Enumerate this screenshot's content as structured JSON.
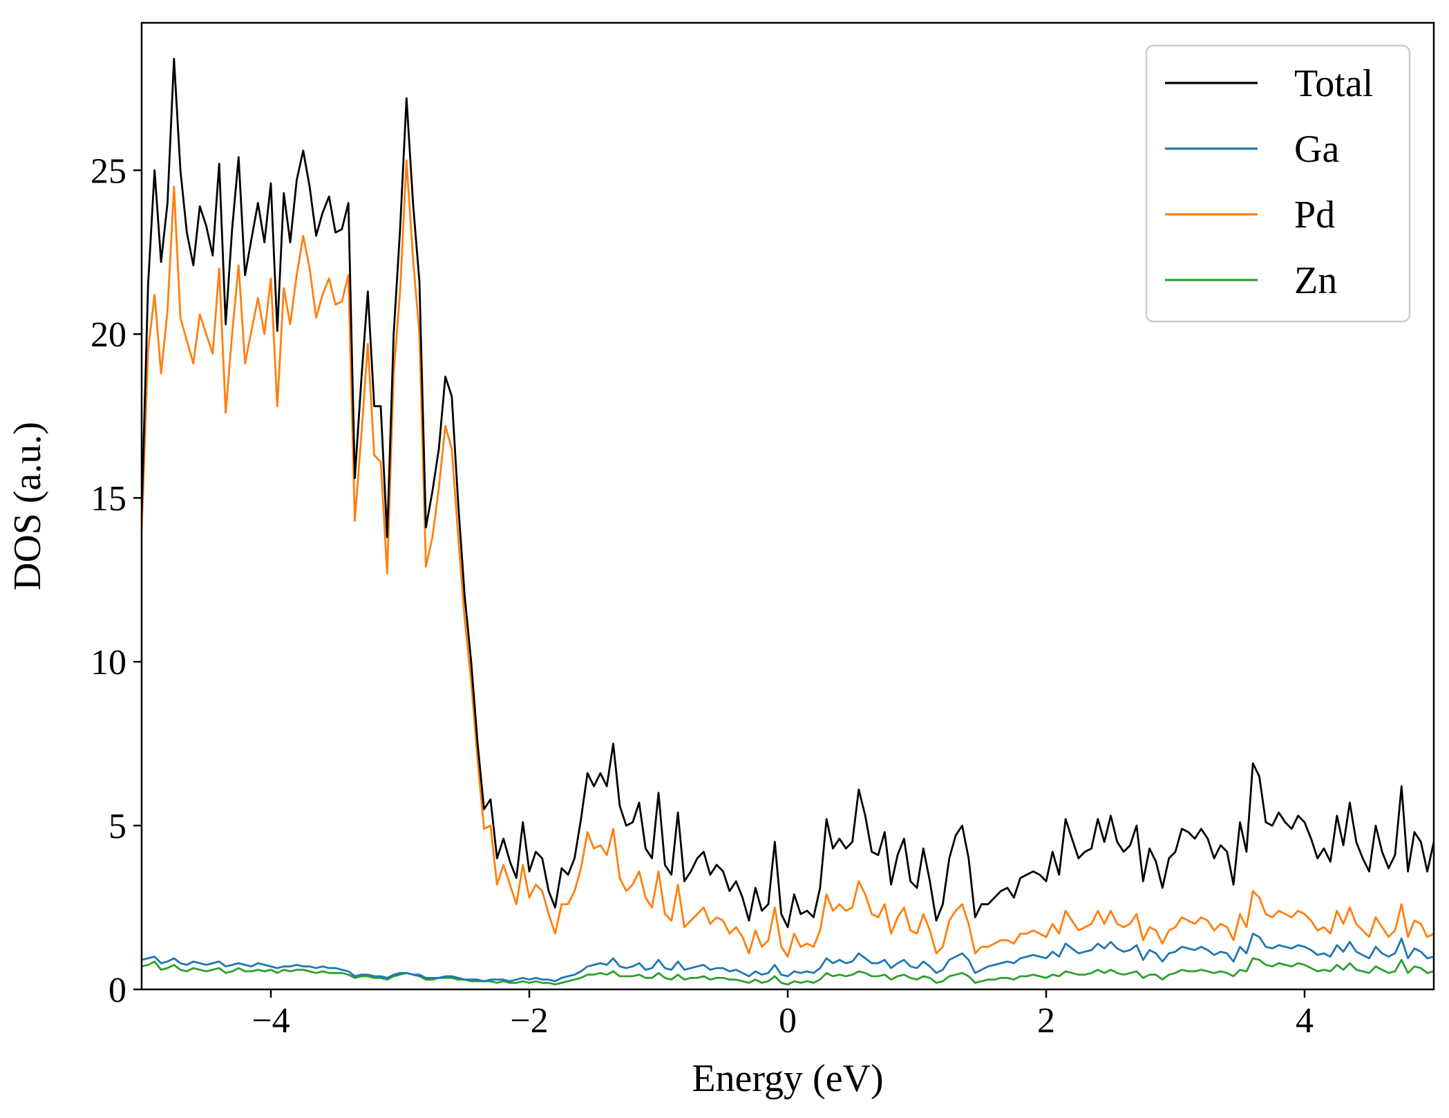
{
  "chart_data": {
    "type": "line",
    "xlabel": "Energy (eV)",
    "ylabel": "DOS (a.u.)",
    "xlim": [
      -5,
      5
    ],
    "ylim": [
      0,
      29.5
    ],
    "xticks": [
      -4,
      -2,
      0,
      2,
      4
    ],
    "xtick_labels": [
      "−4",
      "−2",
      "0",
      "2",
      "4"
    ],
    "yticks": [
      0,
      5,
      10,
      15,
      20,
      25
    ],
    "ytick_labels": [
      "0",
      "5",
      "10",
      "15",
      "20",
      "25"
    ],
    "grid": false,
    "legend_position": "top-right",
    "x": [
      -5.0,
      -4.95,
      -4.9,
      -4.85,
      -4.8,
      -4.75,
      -4.7,
      -4.65,
      -4.6,
      -4.55,
      -4.5,
      -4.45,
      -4.4,
      -4.35,
      -4.3,
      -4.25,
      -4.2,
      -4.15,
      -4.1,
      -4.05,
      -4.0,
      -3.95,
      -3.9,
      -3.85,
      -3.8,
      -3.75,
      -3.7,
      -3.65,
      -3.6,
      -3.55,
      -3.5,
      -3.45,
      -3.4,
      -3.35,
      -3.3,
      -3.25,
      -3.2,
      -3.15,
      -3.1,
      -3.05,
      -3.0,
      -2.95,
      -2.9,
      -2.85,
      -2.8,
      -2.75,
      -2.7,
      -2.65,
      -2.6,
      -2.55,
      -2.5,
      -2.45,
      -2.4,
      -2.35,
      -2.3,
      -2.25,
      -2.2,
      -2.15,
      -2.1,
      -2.05,
      -2.0,
      -1.95,
      -1.9,
      -1.85,
      -1.8,
      -1.75,
      -1.7,
      -1.65,
      -1.6,
      -1.55,
      -1.5,
      -1.45,
      -1.4,
      -1.35,
      -1.3,
      -1.25,
      -1.2,
      -1.15,
      -1.1,
      -1.05,
      -1.0,
      -0.95,
      -0.9,
      -0.85,
      -0.8,
      -0.75,
      -0.7,
      -0.65,
      -0.6,
      -0.55,
      -0.5,
      -0.45,
      -0.4,
      -0.35,
      -0.3,
      -0.25,
      -0.2,
      -0.15,
      -0.1,
      -0.05,
      0.0,
      0.05,
      0.1,
      0.15,
      0.2,
      0.25,
      0.3,
      0.35,
      0.4,
      0.45,
      0.5,
      0.55,
      0.6,
      0.65,
      0.7,
      0.75,
      0.8,
      0.85,
      0.9,
      0.95,
      1.0,
      1.05,
      1.1,
      1.15,
      1.2,
      1.25,
      1.3,
      1.35,
      1.4,
      1.45,
      1.5,
      1.55,
      1.6,
      1.65,
      1.7,
      1.75,
      1.8,
      1.85,
      1.9,
      1.95,
      2.0,
      2.05,
      2.1,
      2.15,
      2.2,
      2.25,
      2.3,
      2.35,
      2.4,
      2.45,
      2.5,
      2.55,
      2.6,
      2.65,
      2.7,
      2.75,
      2.8,
      2.85,
      2.9,
      2.95,
      3.0,
      3.05,
      3.1,
      3.15,
      3.2,
      3.25,
      3.3,
      3.35,
      3.4,
      3.45,
      3.5,
      3.55,
      3.6,
      3.65,
      3.7,
      3.75,
      3.8,
      3.85,
      3.9,
      3.95,
      4.0,
      4.05,
      4.1,
      4.15,
      4.2,
      4.25,
      4.3,
      4.35,
      4.4,
      4.45,
      4.5,
      4.55,
      4.6,
      4.65,
      4.7,
      4.75,
      4.8,
      4.85,
      4.9,
      4.95,
      5.0
    ],
    "series": [
      {
        "name": "Total",
        "color": "#000000",
        "values": [
          14.5,
          21.5,
          25.0,
          22.2,
          24.0,
          28.4,
          25.0,
          23.1,
          22.1,
          23.9,
          23.3,
          22.4,
          25.2,
          20.3,
          23.2,
          25.4,
          21.8,
          22.9,
          24.0,
          22.8,
          24.6,
          20.1,
          24.3,
          22.8,
          24.7,
          25.6,
          24.5,
          23.0,
          23.7,
          24.2,
          23.1,
          23.2,
          24.0,
          15.6,
          18.6,
          21.3,
          17.8,
          17.8,
          13.8,
          20.0,
          23.2,
          27.2,
          24.0,
          21.6,
          14.1,
          15.2,
          16.5,
          18.7,
          18.1,
          14.8,
          12.0,
          10.0,
          7.5,
          5.5,
          5.8,
          4.0,
          4.6,
          3.9,
          3.4,
          5.1,
          3.6,
          4.2,
          4.0,
          3.0,
          2.5,
          3.7,
          3.5,
          4.0,
          5.2,
          6.6,
          6.2,
          6.6,
          6.2,
          7.5,
          5.6,
          5.0,
          5.1,
          5.7,
          4.3,
          4.0,
          6.0,
          3.8,
          3.5,
          5.4,
          3.3,
          3.6,
          4.0,
          4.2,
          3.5,
          3.8,
          3.6,
          3.0,
          3.3,
          2.8,
          2.1,
          3.1,
          2.4,
          2.6,
          4.5,
          2.3,
          1.9,
          2.9,
          2.3,
          2.4,
          2.2,
          3.1,
          5.2,
          4.3,
          4.6,
          4.3,
          4.5,
          6.1,
          5.3,
          4.2,
          4.1,
          4.8,
          3.2,
          4.1,
          4.6,
          3.3,
          3.1,
          4.3,
          3.3,
          2.1,
          2.6,
          4.0,
          4.7,
          5.0,
          4.0,
          2.2,
          2.6,
          2.6,
          2.8,
          3.0,
          3.1,
          2.8,
          3.4,
          3.5,
          3.6,
          3.5,
          3.3,
          4.2,
          3.5,
          5.2,
          4.6,
          4.0,
          4.2,
          4.3,
          5.2,
          4.5,
          5.3,
          4.5,
          4.2,
          4.4,
          5.0,
          3.3,
          4.3,
          3.9,
          3.1,
          4.0,
          4.2,
          4.9,
          4.8,
          4.6,
          4.9,
          4.6,
          4.0,
          4.4,
          4.2,
          3.2,
          5.1,
          4.2,
          6.9,
          6.5,
          5.1,
          5.0,
          5.4,
          5.1,
          4.9,
          5.3,
          5.1,
          4.6,
          4.0,
          4.3,
          3.9,
          5.3,
          4.4,
          5.7,
          4.5,
          4.0,
          3.6,
          5.0,
          4.2,
          3.7,
          4.1,
          6.2,
          3.6,
          4.8,
          4.5,
          3.6,
          4.5
        ]
      },
      {
        "name": "Ga",
        "color": "#1f77b4",
        "values": [
          0.9,
          0.95,
          1.0,
          0.8,
          0.85,
          0.95,
          0.8,
          0.75,
          0.85,
          0.8,
          0.75,
          0.8,
          0.85,
          0.7,
          0.75,
          0.8,
          0.75,
          0.7,
          0.8,
          0.75,
          0.7,
          0.65,
          0.7,
          0.7,
          0.75,
          0.7,
          0.7,
          0.65,
          0.7,
          0.65,
          0.65,
          0.6,
          0.55,
          0.4,
          0.45,
          0.45,
          0.4,
          0.4,
          0.35,
          0.45,
          0.5,
          0.5,
          0.45,
          0.45,
          0.35,
          0.35,
          0.35,
          0.4,
          0.4,
          0.35,
          0.3,
          0.3,
          0.3,
          0.25,
          0.3,
          0.3,
          0.3,
          0.25,
          0.3,
          0.35,
          0.3,
          0.35,
          0.3,
          0.3,
          0.25,
          0.35,
          0.4,
          0.45,
          0.55,
          0.7,
          0.75,
          0.8,
          0.75,
          0.95,
          0.7,
          0.65,
          0.7,
          0.8,
          0.6,
          0.65,
          0.9,
          0.65,
          0.6,
          0.85,
          0.6,
          0.65,
          0.7,
          0.75,
          0.6,
          0.65,
          0.65,
          0.55,
          0.6,
          0.5,
          0.4,
          0.55,
          0.45,
          0.5,
          0.75,
          0.45,
          0.4,
          0.55,
          0.5,
          0.55,
          0.5,
          0.65,
          0.95,
          0.8,
          0.9,
          0.8,
          0.85,
          1.1,
          0.95,
          0.8,
          0.8,
          0.9,
          0.65,
          0.8,
          0.9,
          0.7,
          0.65,
          0.85,
          0.7,
          0.5,
          0.6,
          0.9,
          1.0,
          1.1,
          0.9,
          0.5,
          0.6,
          0.7,
          0.75,
          0.8,
          0.85,
          0.8,
          0.95,
          1.0,
          1.05,
          1.0,
          0.95,
          1.15,
          1.0,
          1.4,
          1.25,
          1.1,
          1.15,
          1.2,
          1.4,
          1.25,
          1.45,
          1.25,
          1.15,
          1.2,
          1.35,
          0.9,
          1.2,
          1.1,
          0.85,
          1.1,
          1.15,
          1.3,
          1.25,
          1.2,
          1.3,
          1.2,
          1.05,
          1.15,
          1.1,
          0.85,
          1.3,
          1.1,
          1.7,
          1.6,
          1.3,
          1.25,
          1.35,
          1.3,
          1.25,
          1.35,
          1.3,
          1.2,
          1.05,
          1.1,
          1.0,
          1.35,
          1.15,
          1.45,
          1.15,
          1.05,
          0.95,
          1.3,
          1.1,
          1.0,
          1.1,
          1.55,
          0.95,
          1.25,
          1.15,
          0.95,
          1.0
        ]
      },
      {
        "name": "Pd",
        "color": "#ff7f0e",
        "values": [
          14.0,
          19.5,
          21.2,
          18.8,
          20.7,
          24.5,
          20.5,
          19.8,
          19.1,
          20.6,
          20.0,
          19.4,
          22.0,
          17.6,
          20.0,
          22.1,
          19.1,
          20.1,
          21.1,
          20.0,
          21.7,
          17.8,
          21.4,
          20.3,
          21.8,
          23.0,
          22.0,
          20.5,
          21.2,
          21.7,
          20.9,
          21.0,
          21.8,
          14.3,
          16.9,
          19.7,
          16.3,
          16.1,
          12.7,
          18.8,
          21.3,
          25.3,
          22.3,
          20.0,
          12.9,
          13.8,
          15.3,
          17.2,
          16.5,
          13.8,
          11.3,
          9.4,
          7.0,
          4.9,
          5.0,
          3.2,
          3.8,
          3.2,
          2.6,
          3.8,
          2.8,
          3.2,
          3.0,
          2.3,
          1.7,
          2.6,
          2.6,
          3.0,
          3.7,
          4.8,
          4.3,
          4.4,
          4.1,
          4.9,
          3.4,
          3.0,
          3.2,
          3.6,
          2.8,
          2.5,
          3.6,
          2.3,
          2.1,
          3.2,
          1.9,
          2.1,
          2.3,
          2.5,
          2.0,
          2.2,
          2.1,
          1.7,
          1.9,
          1.6,
          1.1,
          1.8,
          1.3,
          1.5,
          2.5,
          1.3,
          1.0,
          1.7,
          1.3,
          1.4,
          1.3,
          1.8,
          2.9,
          2.4,
          2.6,
          2.4,
          2.5,
          3.3,
          2.9,
          2.3,
          2.2,
          2.6,
          1.7,
          2.2,
          2.5,
          1.8,
          1.7,
          2.3,
          1.8,
          1.1,
          1.3,
          2.1,
          2.4,
          2.6,
          2.0,
          1.1,
          1.3,
          1.3,
          1.4,
          1.5,
          1.5,
          1.4,
          1.7,
          1.7,
          1.8,
          1.7,
          1.6,
          2.0,
          1.7,
          2.4,
          2.1,
          1.8,
          1.9,
          2.0,
          2.4,
          2.0,
          2.4,
          2.0,
          1.9,
          2.0,
          2.3,
          1.5,
          1.9,
          1.8,
          1.4,
          1.8,
          1.9,
          2.2,
          2.1,
          2.0,
          2.2,
          2.1,
          1.8,
          2.0,
          1.9,
          1.5,
          2.3,
          1.9,
          3.0,
          2.8,
          2.3,
          2.2,
          2.4,
          2.3,
          2.2,
          2.4,
          2.3,
          2.1,
          1.8,
          1.9,
          1.7,
          2.4,
          2.0,
          2.5,
          2.0,
          1.8,
          1.6,
          2.2,
          1.9,
          1.6,
          1.8,
          2.6,
          1.6,
          2.1,
          2.0,
          1.6,
          1.7
        ]
      },
      {
        "name": "Zn",
        "color": "#2ca02c",
        "values": [
          0.7,
          0.75,
          0.85,
          0.6,
          0.65,
          0.75,
          0.6,
          0.55,
          0.65,
          0.6,
          0.55,
          0.6,
          0.65,
          0.5,
          0.55,
          0.65,
          0.55,
          0.55,
          0.6,
          0.55,
          0.6,
          0.5,
          0.6,
          0.55,
          0.6,
          0.6,
          0.55,
          0.5,
          0.55,
          0.5,
          0.5,
          0.5,
          0.45,
          0.35,
          0.4,
          0.4,
          0.35,
          0.35,
          0.3,
          0.4,
          0.45,
          0.5,
          0.45,
          0.4,
          0.3,
          0.3,
          0.35,
          0.35,
          0.35,
          0.3,
          0.3,
          0.25,
          0.25,
          0.25,
          0.25,
          0.2,
          0.25,
          0.2,
          0.2,
          0.25,
          0.2,
          0.25,
          0.2,
          0.2,
          0.15,
          0.2,
          0.25,
          0.3,
          0.35,
          0.45,
          0.45,
          0.5,
          0.45,
          0.55,
          0.4,
          0.4,
          0.4,
          0.45,
          0.35,
          0.35,
          0.5,
          0.35,
          0.3,
          0.45,
          0.3,
          0.35,
          0.35,
          0.4,
          0.3,
          0.35,
          0.35,
          0.3,
          0.3,
          0.25,
          0.2,
          0.3,
          0.2,
          0.25,
          0.4,
          0.2,
          0.15,
          0.25,
          0.2,
          0.25,
          0.2,
          0.3,
          0.5,
          0.4,
          0.45,
          0.4,
          0.45,
          0.55,
          0.5,
          0.4,
          0.4,
          0.45,
          0.3,
          0.4,
          0.45,
          0.35,
          0.3,
          0.4,
          0.35,
          0.2,
          0.25,
          0.4,
          0.45,
          0.5,
          0.4,
          0.2,
          0.25,
          0.3,
          0.3,
          0.35,
          0.35,
          0.3,
          0.4,
          0.4,
          0.45,
          0.4,
          0.35,
          0.45,
          0.4,
          0.55,
          0.5,
          0.45,
          0.45,
          0.5,
          0.6,
          0.5,
          0.6,
          0.5,
          0.45,
          0.5,
          0.55,
          0.35,
          0.45,
          0.45,
          0.3,
          0.45,
          0.5,
          0.6,
          0.55,
          0.55,
          0.6,
          0.55,
          0.5,
          0.55,
          0.5,
          0.4,
          0.6,
          0.55,
          0.95,
          0.9,
          0.75,
          0.7,
          0.8,
          0.75,
          0.7,
          0.8,
          0.75,
          0.65,
          0.55,
          0.6,
          0.55,
          0.75,
          0.6,
          0.8,
          0.6,
          0.55,
          0.5,
          0.7,
          0.6,
          0.5,
          0.55,
          0.9,
          0.5,
          0.7,
          0.65,
          0.5,
          0.55
        ]
      }
    ]
  }
}
